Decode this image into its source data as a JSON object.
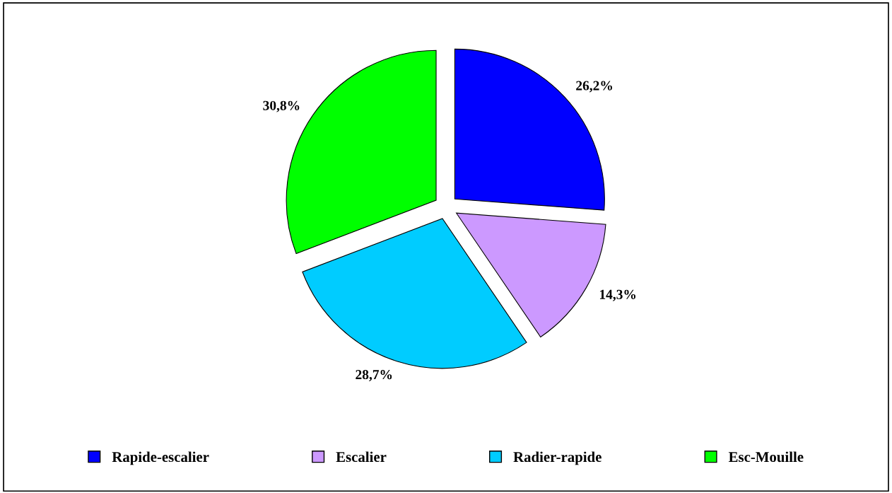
{
  "chart_data": {
    "type": "pie",
    "categories": [
      "Rapide-escalier",
      "Escalier",
      "Radier-rapide",
      "Esc-Mouille"
    ],
    "values": [
      26.2,
      14.3,
      28.7,
      30.8
    ],
    "colors": [
      "#0000ff",
      "#cc99ff",
      "#00ccff",
      "#00ff00"
    ],
    "value_labels": [
      "26,2%",
      "14,3%",
      "28,7%",
      "30,8%"
    ],
    "legend": "bottom"
  }
}
